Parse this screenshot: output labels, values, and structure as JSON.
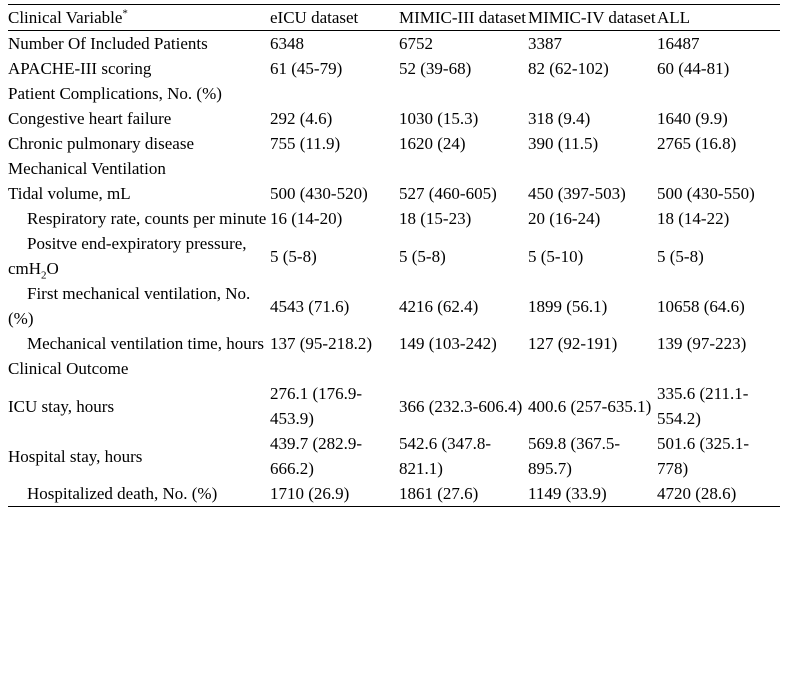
{
  "header": {
    "variable": "Clinical Variable",
    "variable_mark": "*",
    "eicu": "eICU dataset",
    "mimic3": "MIMIC-III dataset",
    "mimic4": "MIMIC-IV dataset",
    "all": "ALL"
  },
  "rows": [
    {
      "label": "Number Of Included Patients",
      "eicu": "6348",
      "mimic3": "6752",
      "mimic4": "3387",
      "all": "16487"
    },
    {
      "label": "APACHE-III scoring",
      "eicu": "61 (45-79)",
      "mimic3": "52 (39-68)",
      "mimic4": "82 (62-102)",
      "all": "60 (44-81)"
    },
    {
      "label": "Patient Complications, No. (%)"
    },
    {
      "label": "Congestive heart failure",
      "eicu": "292 (4.6)",
      "mimic3": "1030 (15.3)",
      "mimic4": "318 (9.4)",
      "all": "1640 (9.9)"
    },
    {
      "label": "Chronic pulmonary disease",
      "eicu": "755 (11.9)",
      "mimic3": "1620 (24)",
      "mimic4": "390 (11.5)",
      "all": "2765 (16.8)"
    },
    {
      "label": "Mechanical Ventilation"
    },
    {
      "label": "Tidal volume, mL",
      "eicu": "500 (430-520)",
      "mimic3": "527 (460-605)",
      "mimic4": "450 (397-503)",
      "all": "500 (430-550)"
    },
    {
      "label": "Respiratory rate, counts per minute",
      "eicu": "16 (14-20)",
      "mimic3": "18 (15-23)",
      "mimic4": "20 (16-24)",
      "all": "18 (14-22)"
    },
    {
      "label": "Positve end-expiratory pressure, cmH",
      "label_sub": "2",
      "label_end": "O",
      "eicu": "5 (5-8)",
      "mimic3": "5 (5-8)",
      "mimic4": "5 (5-10)",
      "all": "5 (5-8)"
    },
    {
      "label": "First mechanical ventilation, No. (%)",
      "eicu": "4543 (71.6)",
      "mimic3": "4216 (62.4)",
      "mimic4": "1899 (56.1)",
      "all": "10658 (64.6)"
    },
    {
      "label": "Mechanical ventilation time, hours",
      "eicu": "137 (95-218.2)",
      "mimic3": "149 (103-242)",
      "mimic4": "127 (92-191)",
      "all": "139 (97-223)"
    },
    {
      "label": "Clinical Outcome"
    },
    {
      "label": "ICU stay, hours",
      "eicu": "276.1 (176.9-453.9)",
      "mimic3": "366 (232.3-606.4)",
      "mimic4": "400.6 (257-635.1)",
      "all": "335.6 (211.1-554.2)"
    },
    {
      "label": "Hospital stay, hours",
      "eicu": "439.7 (282.9-666.2)",
      "mimic3": "542.6 (347.8-821.1)",
      "mimic4": "569.8 (367.5-895.7)",
      "all": "501.6 (325.1-778)"
    },
    {
      "label": "Hospitalized death, No. (%)",
      "eicu": "1710 (26.9)",
      "mimic3": "1861 (27.6)",
      "mimic4": "1149 (33.9)",
      "all": "4720 (28.6)"
    }
  ]
}
